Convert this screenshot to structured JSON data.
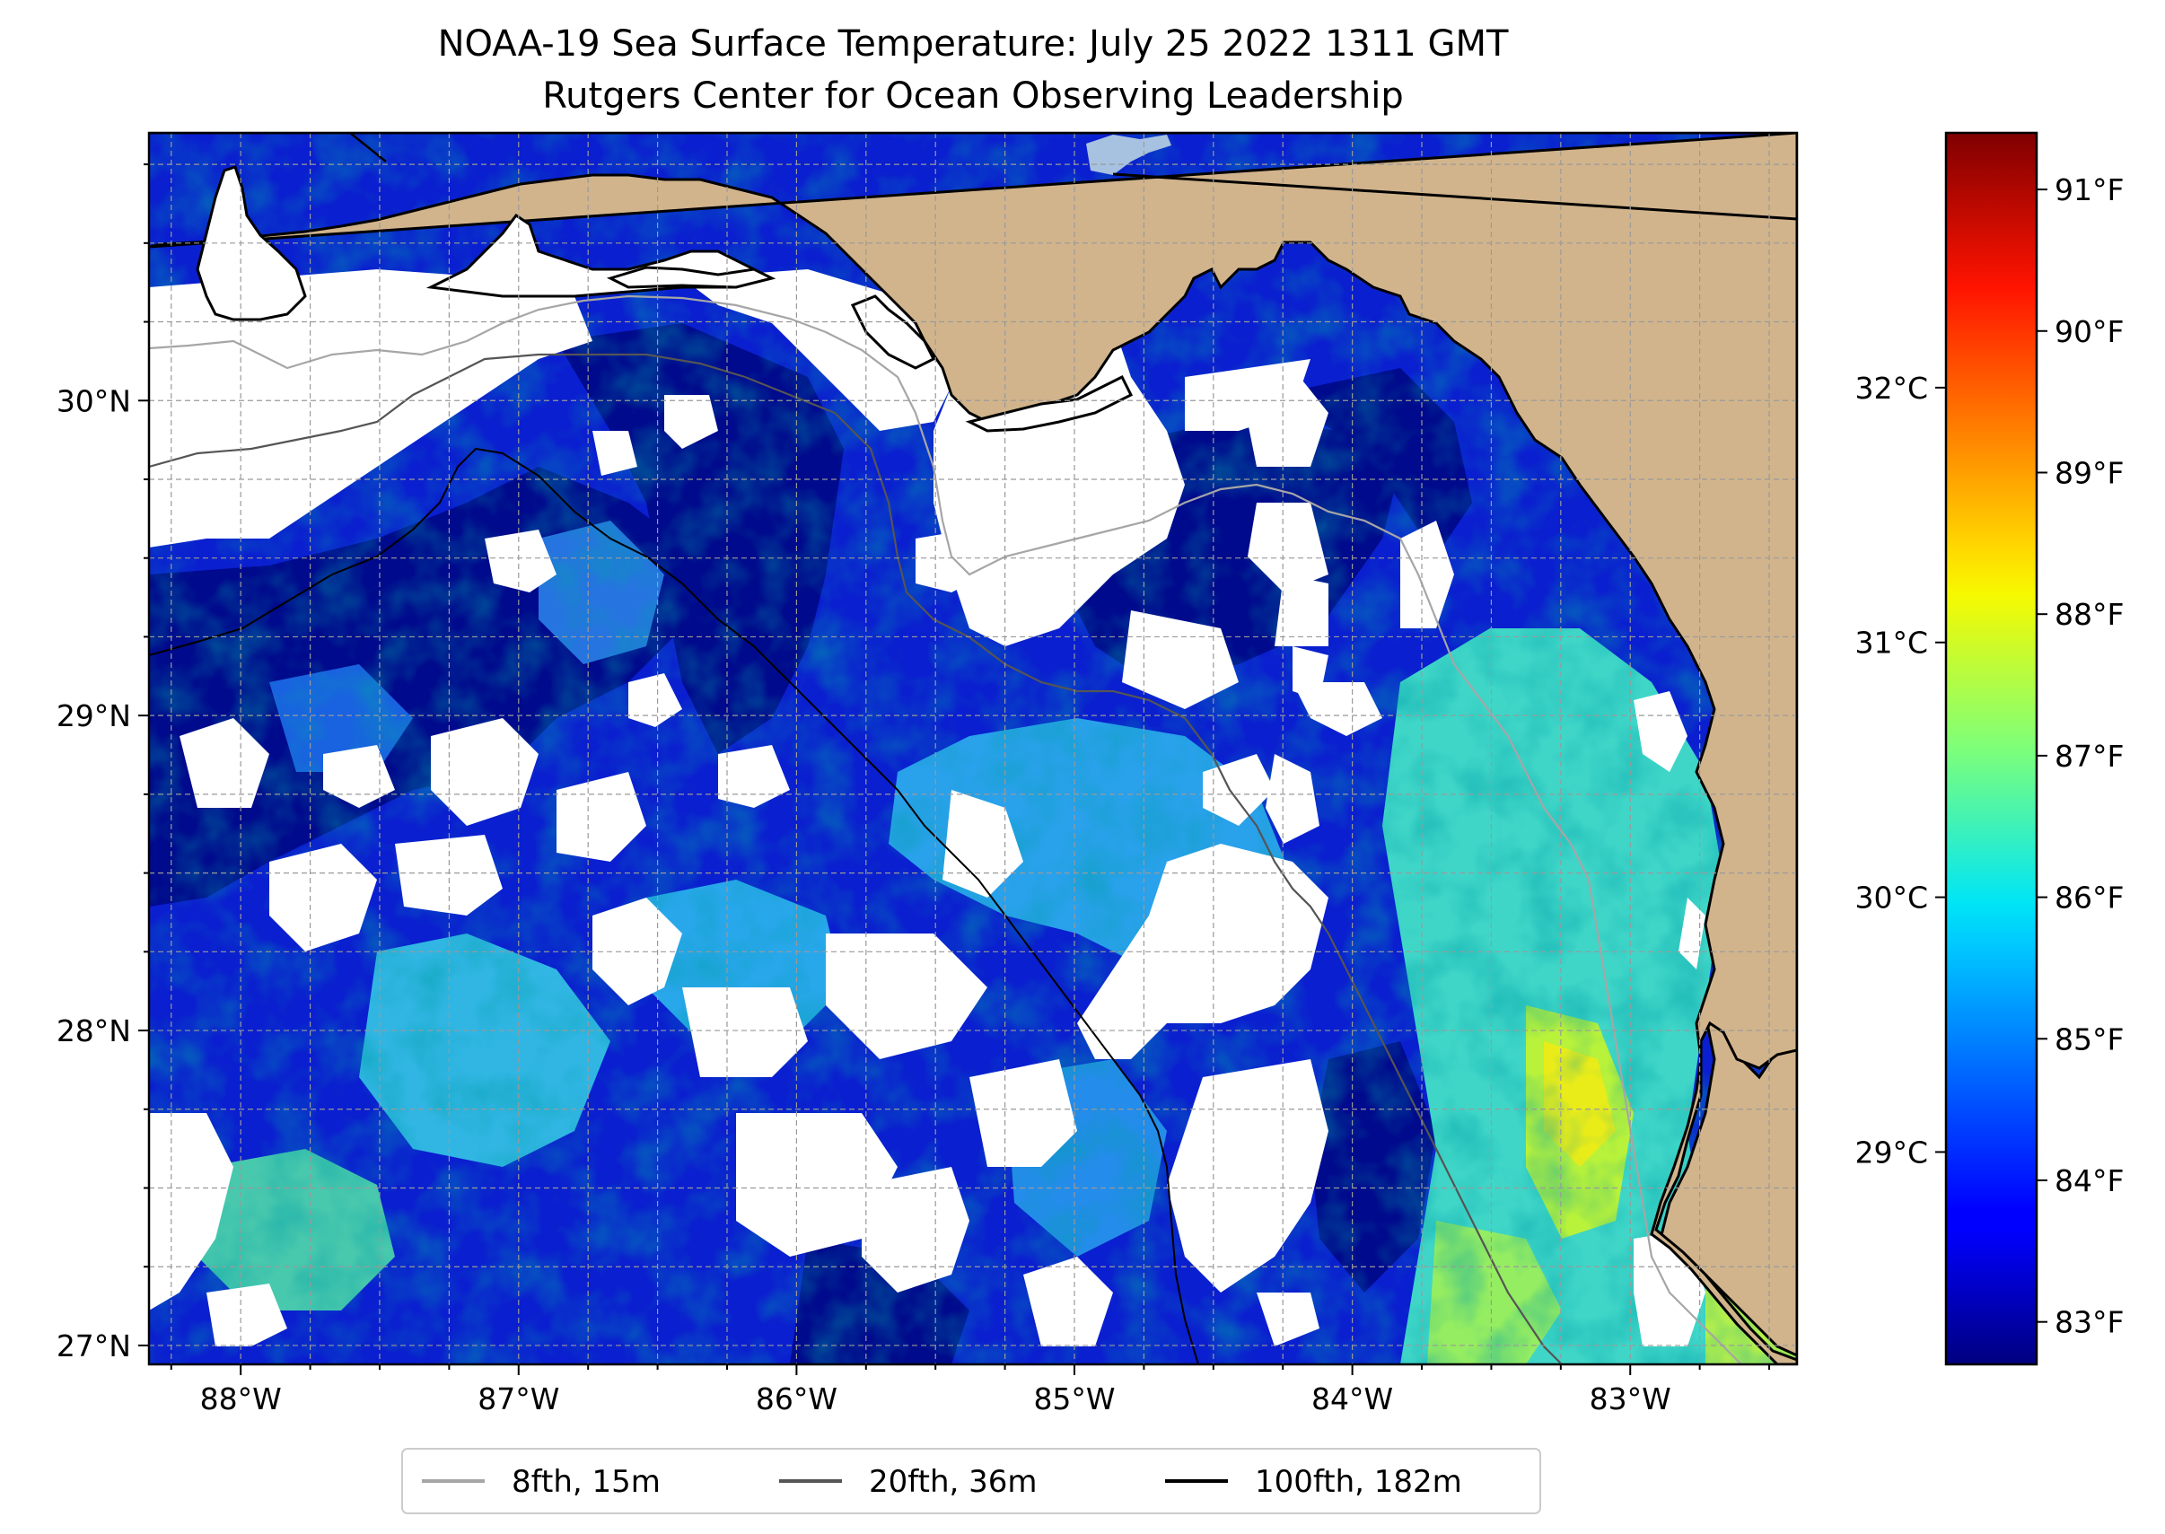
{
  "title_line1": "NOAA-19 Sea Surface Temperature: July 25 2022 1311 GMT",
  "title_line2": "Rutgers Center for Ocean Observing Leadership",
  "map": {
    "lon_range": [
      -88.33,
      -82.4
    ],
    "lat_range": [
      26.94,
      30.85
    ],
    "lon_ticks": [
      {
        "value": -88,
        "label": "88°W"
      },
      {
        "value": -87,
        "label": "87°W"
      },
      {
        "value": -86,
        "label": "86°W"
      },
      {
        "value": -85,
        "label": "85°W"
      },
      {
        "value": -84,
        "label": "84°W"
      },
      {
        "value": -83,
        "label": "83°W"
      }
    ],
    "lat_ticks": [
      {
        "value": 30,
        "label": "30°N"
      },
      {
        "value": 29,
        "label": "29°N"
      },
      {
        "value": 28,
        "label": "28°N"
      },
      {
        "value": 27,
        "label": "27°N"
      }
    ],
    "gridlines": "dashed every 0.25°",
    "colors": {
      "land": "#d1b48c",
      "no_data": "#ffffff",
      "lake": "#a7c1e0",
      "contour_8fth": "#a6a6a6",
      "contour_20fth": "#555555",
      "contour_100fth": "#000000"
    }
  },
  "colorbar": {
    "colormap": "jet",
    "fahrenheit_ticks": [
      "91°F",
      "90°F",
      "89°F",
      "88°F",
      "87°F",
      "86°F",
      "85°F",
      "84°F",
      "83°F"
    ],
    "fahrenheit_values": [
      91,
      90,
      89,
      88,
      87,
      86,
      85,
      84,
      83
    ],
    "celsius_ticks": [
      "32°C",
      "31°C",
      "30°C",
      "29°C"
    ],
    "celsius_values": [
      32,
      31,
      30,
      29
    ],
    "range_f": [
      82.7,
      91.4
    ]
  },
  "legend": {
    "placement": "bottom-center",
    "entries": [
      {
        "label": "8fth, 15m",
        "color": "#a6a6a6"
      },
      {
        "label": "20fth, 36m",
        "color": "#555555"
      },
      {
        "label": "100fth, 182m",
        "color": "#000000"
      }
    ]
  }
}
